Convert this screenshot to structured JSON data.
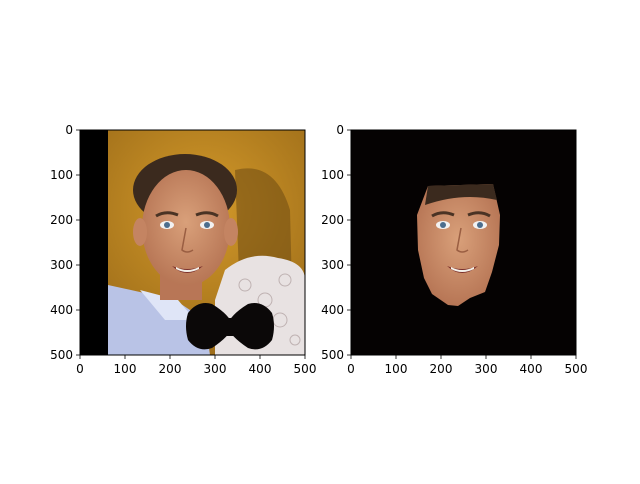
{
  "chart_data": [
    {
      "type": "image",
      "title": "",
      "xlabel": "",
      "ylabel": "",
      "xlim": [
        0,
        500
      ],
      "ylim": [
        500,
        0
      ],
      "xticks": [
        0,
        100,
        200,
        300,
        400,
        500
      ],
      "yticks": [
        0,
        100,
        200,
        300,
        400,
        500
      ],
      "content": "photo of a smiling man's face with a black bow-tie shape over the lower right; black band on the left edge",
      "colors": {
        "background": "#c28a1e",
        "skin": "#c98a63",
        "hair": "#3b2a1e",
        "shirt": "#b9c3e6",
        "lace": "#e8e2e2",
        "bowtie": "#0b0808",
        "border_band": "#000000"
      }
    },
    {
      "type": "image",
      "title": "",
      "xlabel": "",
      "ylabel": "",
      "xlim": [
        0,
        500
      ],
      "ylim": [
        500,
        0
      ],
      "xticks": [
        0,
        100,
        200,
        300,
        400,
        500
      ],
      "yticks": [
        0,
        100,
        200,
        300,
        400,
        500
      ],
      "content": "face region only, isolated on a black background",
      "colors": {
        "background": "#050202",
        "skin": "#c98a63",
        "hair": "#3b2a1e"
      }
    }
  ]
}
